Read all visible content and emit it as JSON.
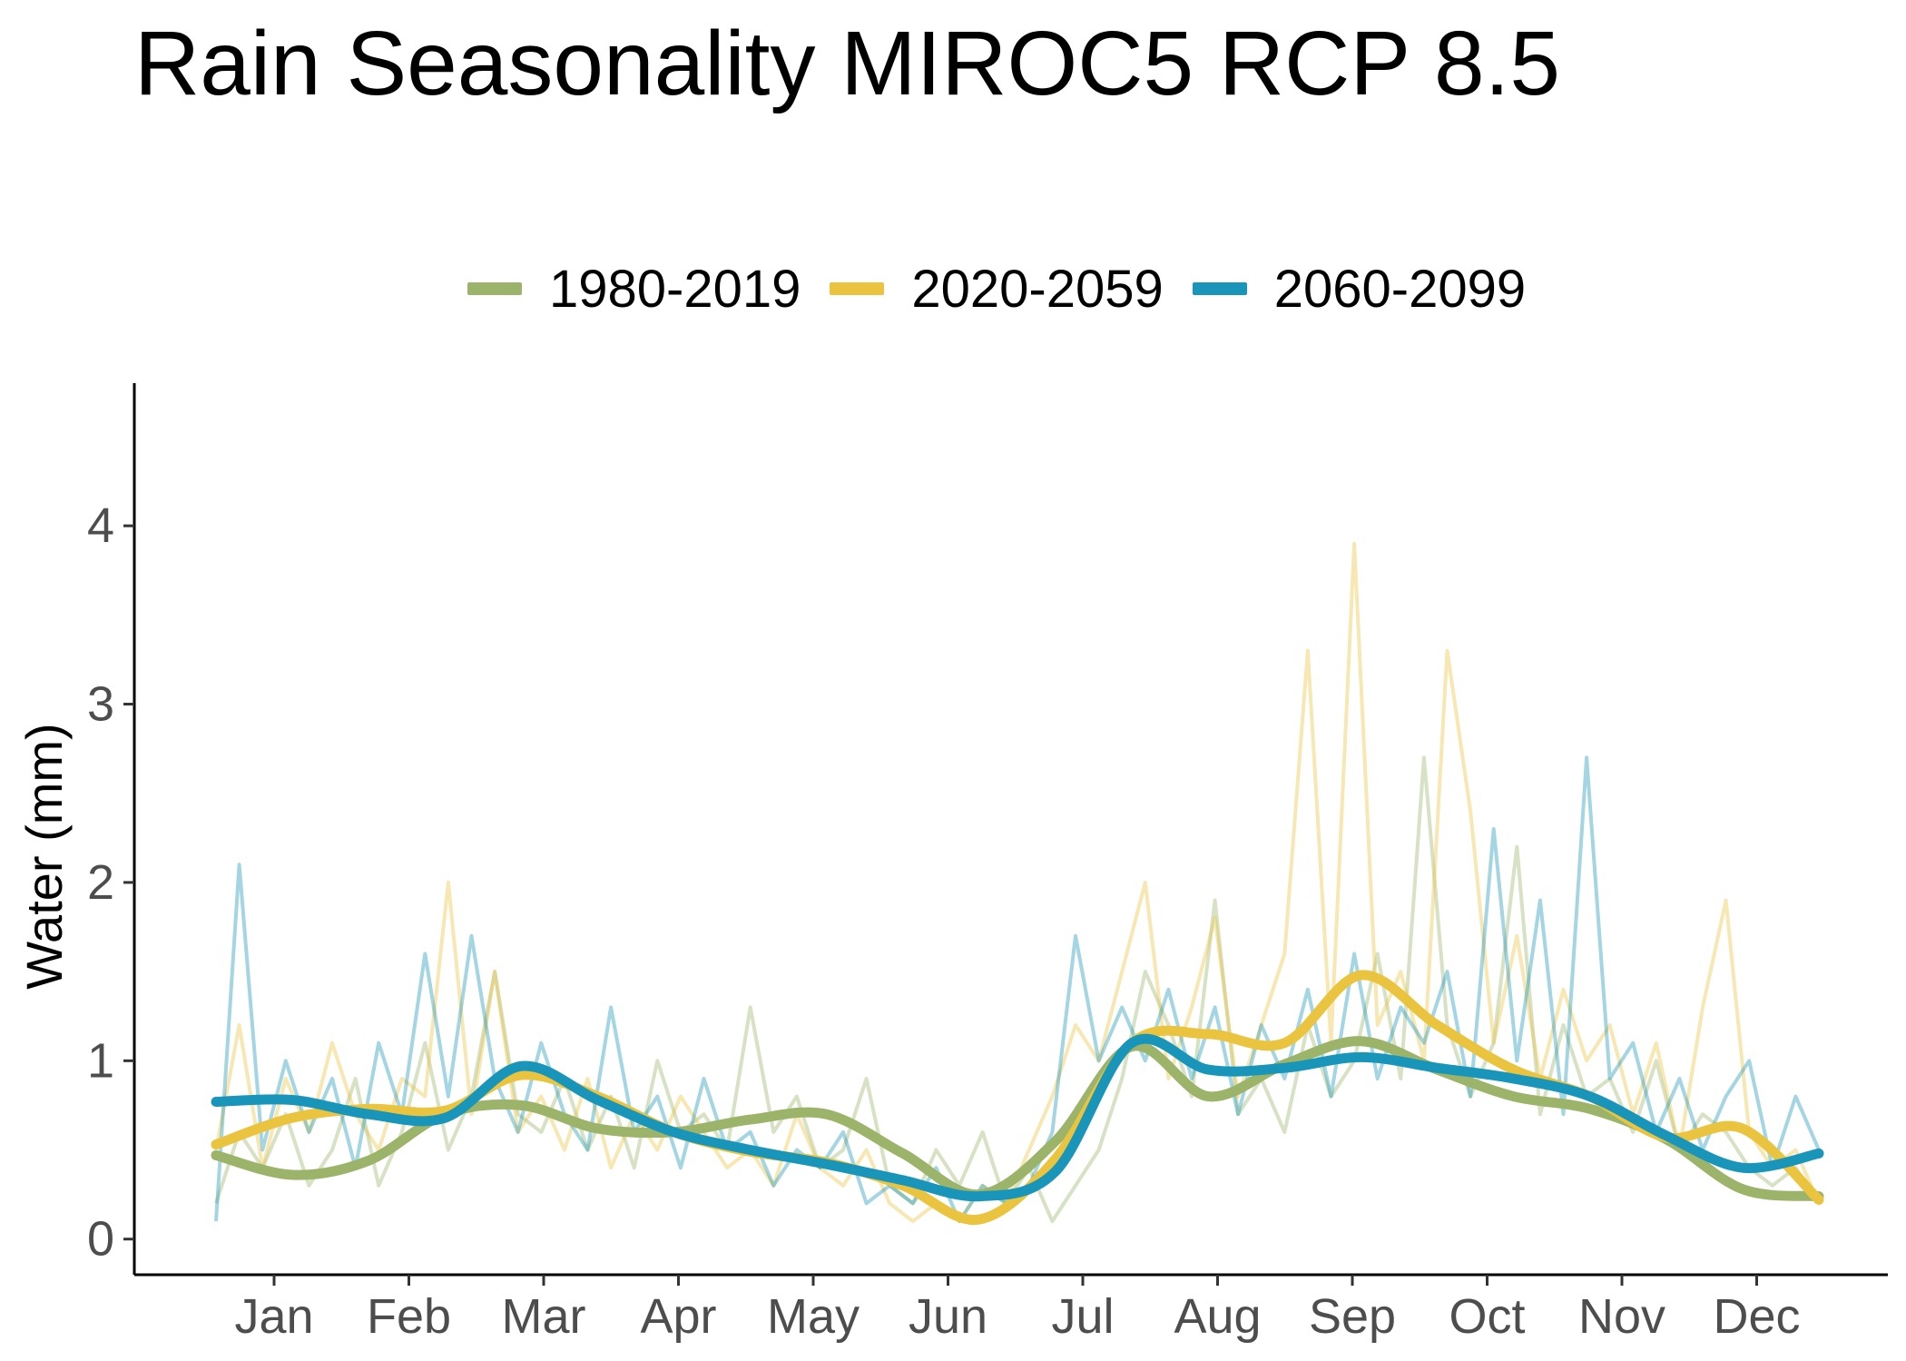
{
  "chart_data": {
    "type": "line",
    "title": "Rain Seasonality MIROC5 RCP 8.5",
    "ylabel": "Water (mm)",
    "xlabel": "",
    "ylim": [
      -0.2,
      4.8
    ],
    "yticks": [
      0,
      1,
      2,
      3,
      4
    ],
    "categories": [
      "Jan",
      "Feb",
      "Mar",
      "Apr",
      "May",
      "Jun",
      "Jul",
      "Aug",
      "Sep",
      "Oct",
      "Nov",
      "Dec"
    ],
    "legend_position": "top",
    "grid": false,
    "series": [
      {
        "name": "1980-2019",
        "color": "#9CB36A",
        "smooth": [
          0.47,
          0.36,
          0.44,
          0.7,
          0.75,
          0.62,
          0.6,
          0.67,
          0.7,
          0.48,
          0.25,
          0.55,
          1.08,
          0.8,
          0.98,
          1.11,
          0.95,
          0.8,
          0.73,
          0.56,
          0.28,
          0.24
        ],
        "raw": [
          0.2,
          0.6,
          0.4,
          0.7,
          0.3,
          0.5,
          0.9,
          0.3,
          0.6,
          1.1,
          0.5,
          0.8,
          1.5,
          0.7,
          0.6,
          0.9,
          0.5,
          0.8,
          0.4,
          1.0,
          0.6,
          0.7,
          0.5,
          1.3,
          0.6,
          0.8,
          0.4,
          0.5,
          0.9,
          0.3,
          0.2,
          0.5,
          0.3,
          0.6,
          0.2,
          0.4,
          0.1,
          0.3,
          0.5,
          0.9,
          1.5,
          1.2,
          0.8,
          1.9,
          0.7,
          0.9,
          0.6,
          1.2,
          0.8,
          1.0,
          1.6,
          0.9,
          2.7,
          1.2,
          0.8,
          1.1,
          2.2,
          0.7,
          1.2,
          0.8,
          0.9,
          0.6,
          1.0,
          0.5,
          0.7,
          0.6,
          0.4,
          0.3,
          0.4,
          0.2
        ]
      },
      {
        "name": "2020-2059",
        "color": "#EBC43F",
        "smooth": [
          0.53,
          0.68,
          0.73,
          0.72,
          0.92,
          0.8,
          0.6,
          0.49,
          0.43,
          0.3,
          0.11,
          0.45,
          1.1,
          1.15,
          1.1,
          1.48,
          1.2,
          0.95,
          0.8,
          0.57,
          0.62,
          0.22
        ],
        "raw": [
          0.5,
          1.2,
          0.4,
          0.9,
          0.6,
          1.1,
          0.7,
          0.5,
          0.9,
          0.8,
          2.0,
          0.7,
          1.5,
          0.6,
          0.8,
          0.5,
          0.9,
          0.4,
          0.7,
          0.5,
          0.8,
          0.6,
          0.4,
          0.5,
          0.3,
          0.7,
          0.4,
          0.3,
          0.5,
          0.2,
          0.1,
          0.2,
          0.1,
          0.3,
          0.2,
          0.5,
          0.8,
          1.2,
          1.0,
          1.5,
          2.0,
          0.9,
          1.3,
          1.8,
          0.8,
          1.2,
          1.6,
          3.3,
          1.1,
          3.9,
          1.2,
          1.5,
          1.0,
          3.3,
          2.4,
          1.1,
          1.7,
          0.9,
          1.4,
          1.0,
          1.2,
          0.7,
          1.1,
          0.5,
          1.3,
          1.9,
          0.6,
          0.4,
          0.5,
          0.2
        ]
      },
      {
        "name": "2060-2099",
        "color": "#1A95BA",
        "smooth": [
          0.77,
          0.78,
          0.7,
          0.68,
          0.97,
          0.78,
          0.6,
          0.5,
          0.42,
          0.33,
          0.24,
          0.38,
          1.1,
          0.95,
          0.96,
          1.02,
          0.96,
          0.9,
          0.8,
          0.58,
          0.4,
          0.48
        ],
        "raw": [
          0.1,
          2.1,
          0.5,
          1.0,
          0.6,
          0.9,
          0.4,
          1.1,
          0.7,
          1.6,
          0.8,
          1.7,
          0.9,
          0.6,
          1.1,
          0.7,
          0.5,
          1.3,
          0.6,
          0.8,
          0.4,
          0.9,
          0.5,
          0.6,
          0.3,
          0.5,
          0.4,
          0.6,
          0.2,
          0.3,
          0.2,
          0.4,
          0.1,
          0.3,
          0.2,
          0.3,
          0.6,
          1.7,
          1.0,
          1.3,
          1.0,
          1.4,
          0.9,
          1.3,
          0.7,
          1.2,
          0.9,
          1.4,
          0.8,
          1.6,
          0.9,
          1.3,
          1.1,
          1.5,
          0.8,
          2.3,
          1.0,
          1.9,
          0.7,
          2.7,
          0.9,
          1.1,
          0.6,
          0.9,
          0.5,
          0.8,
          1.0,
          0.4,
          0.8,
          0.5
        ]
      }
    ]
  }
}
